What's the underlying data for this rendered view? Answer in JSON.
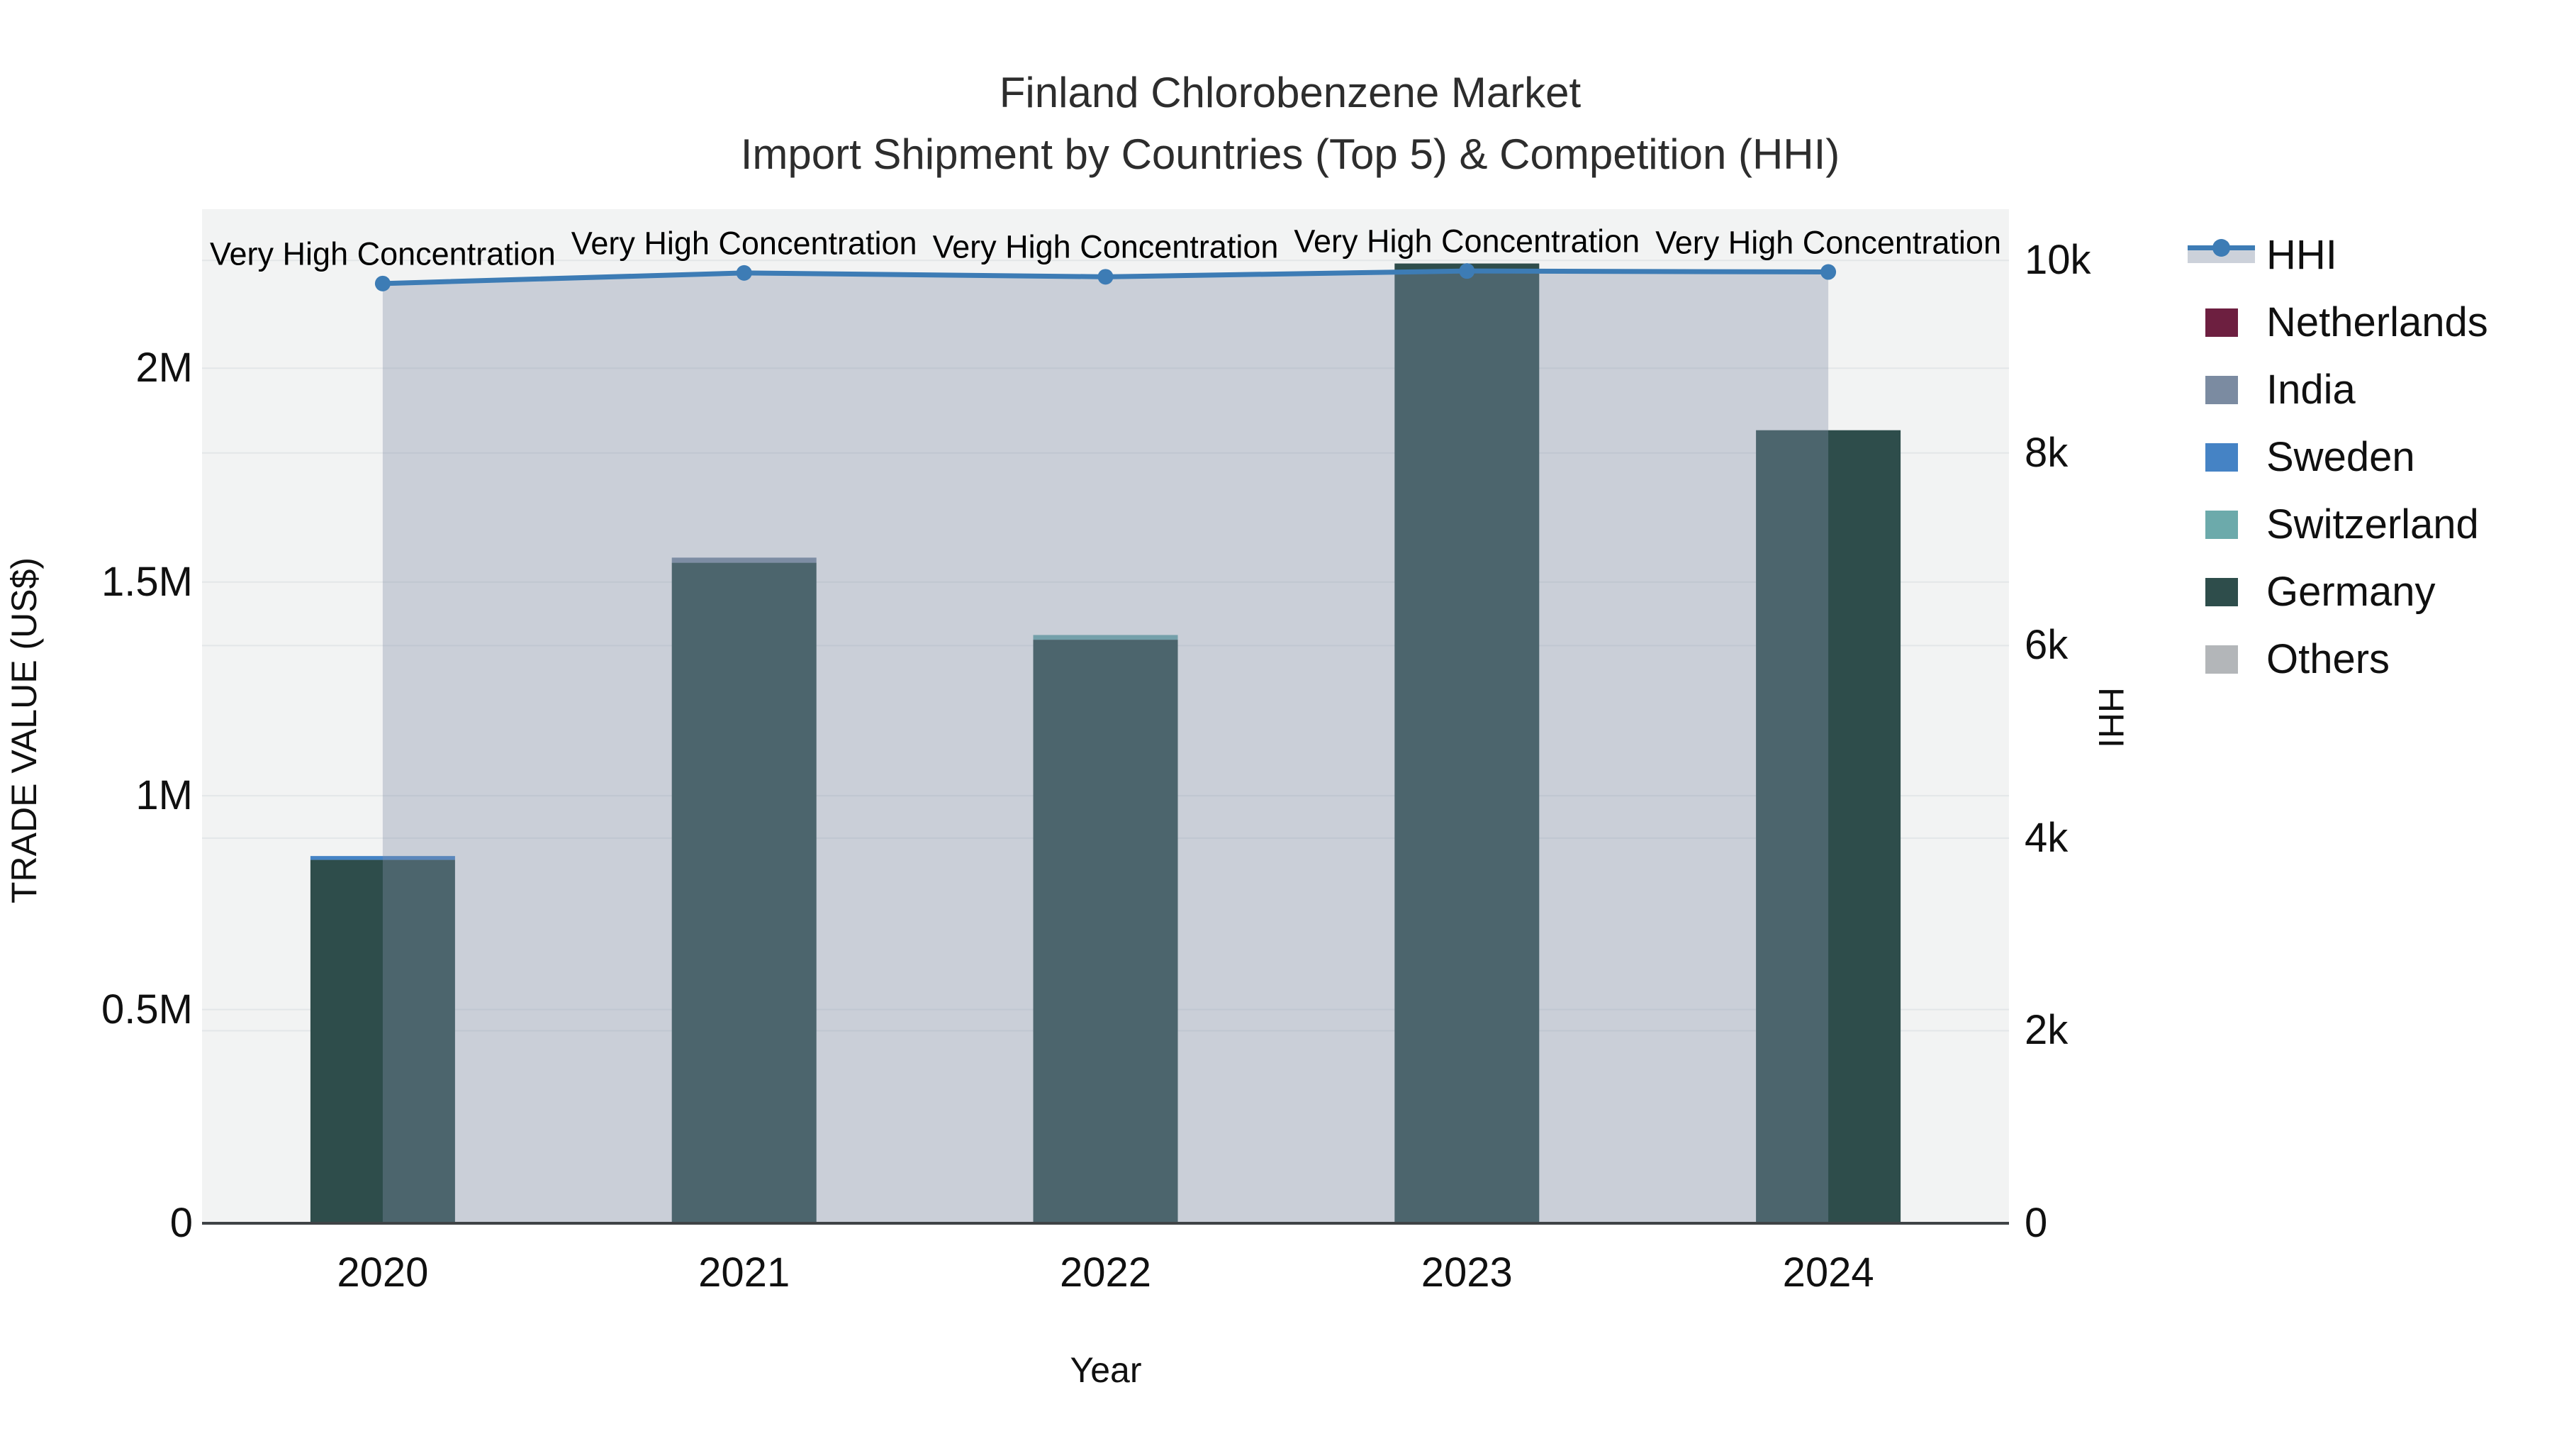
{
  "title": {
    "line1": "Finland Chlorobenzene Market",
    "line2": "Import Shipment by Countries (Top 5) & Competition (HHI)"
  },
  "axes": {
    "x": {
      "title": "Year",
      "categories": [
        "2020",
        "2021",
        "2022",
        "2023",
        "2024"
      ]
    },
    "y_left": {
      "title": "TRADE VALUE (US$)",
      "tick_labels": [
        "0",
        "0.5M",
        "1M",
        "1.5M",
        "2M"
      ],
      "tick_values": [
        0,
        500000,
        1000000,
        1500000,
        2000000
      ]
    },
    "y_right": {
      "title": "HHI",
      "tick_labels": [
        "0",
        "2k",
        "4k",
        "6k",
        "8k",
        "10k"
      ],
      "tick_values": [
        0,
        2000,
        4000,
        6000,
        8000,
        10000
      ]
    }
  },
  "annotations": [
    "Very High Concentration",
    "Very High Concentration",
    "Very High Concentration",
    "Very High Concentration",
    "Very High Concentration"
  ],
  "legend": {
    "items": [
      {
        "label": "HHI",
        "type": "line",
        "color": "#3d7cb5",
        "band": "#ccd1da"
      },
      {
        "label": "Netherlands",
        "type": "swatch",
        "color": "#6d1f40"
      },
      {
        "label": "India",
        "type": "swatch",
        "color": "#7b8ba1"
      },
      {
        "label": "Sweden",
        "type": "swatch",
        "color": "#4583c5"
      },
      {
        "label": "Switzerland",
        "type": "swatch",
        "color": "#6caaab"
      },
      {
        "label": "Germany",
        "type": "swatch",
        "color": "#2e4d4b"
      },
      {
        "label": "Others",
        "type": "swatch",
        "color": "#b3b6b9"
      }
    ]
  },
  "chart_data": {
    "type": "bar+line",
    "title": "Finland Chlorobenzene Market — Import Shipment by Countries (Top 5) & Competition (HHI)",
    "xlabel": "Year",
    "ylabel_left": "TRADE VALUE (US$)",
    "ylabel_right": "HHI",
    "categories": [
      "2020",
      "2021",
      "2022",
      "2023",
      "2024"
    ],
    "stacked": true,
    "grid": true,
    "legend_position": "right",
    "ylim_left": [
      0,
      2372000
    ],
    "ylim_right": [
      0,
      10532
    ],
    "bar_series": [
      {
        "name": "Netherlands",
        "color": "#6d1f40",
        "values": [
          0,
          0,
          0,
          0,
          0
        ]
      },
      {
        "name": "India",
        "color": "#7b8ba1",
        "values": [
          0,
          12000,
          0,
          0,
          0
        ]
      },
      {
        "name": "Sweden",
        "color": "#4583c5",
        "values": [
          9000,
          0,
          0,
          0,
          0
        ]
      },
      {
        "name": "Switzerland",
        "color": "#6caaab",
        "values": [
          0,
          0,
          11000,
          0,
          0
        ]
      },
      {
        "name": "Germany",
        "color": "#2e4d4b",
        "values": [
          850000,
          1545000,
          1365000,
          2245000,
          1855000
        ]
      },
      {
        "name": "Others",
        "color": "#b3b6b9",
        "values": [
          0,
          0,
          0,
          0,
          0
        ]
      }
    ],
    "line_series": {
      "name": "HHI",
      "axis": "right",
      "color": "#3d7cb5",
      "fill_color": "rgba(130,143,170,0.36)",
      "values": [
        9760,
        9870,
        9830,
        9890,
        9880
      ]
    }
  },
  "style": {
    "plot_bg": "#f2f3f3",
    "grid_color": "#e3e6e8",
    "axis_line_color": "#3f4346",
    "bar_color": "#2e4d4b",
    "line_color": "#3d7cb5"
  }
}
